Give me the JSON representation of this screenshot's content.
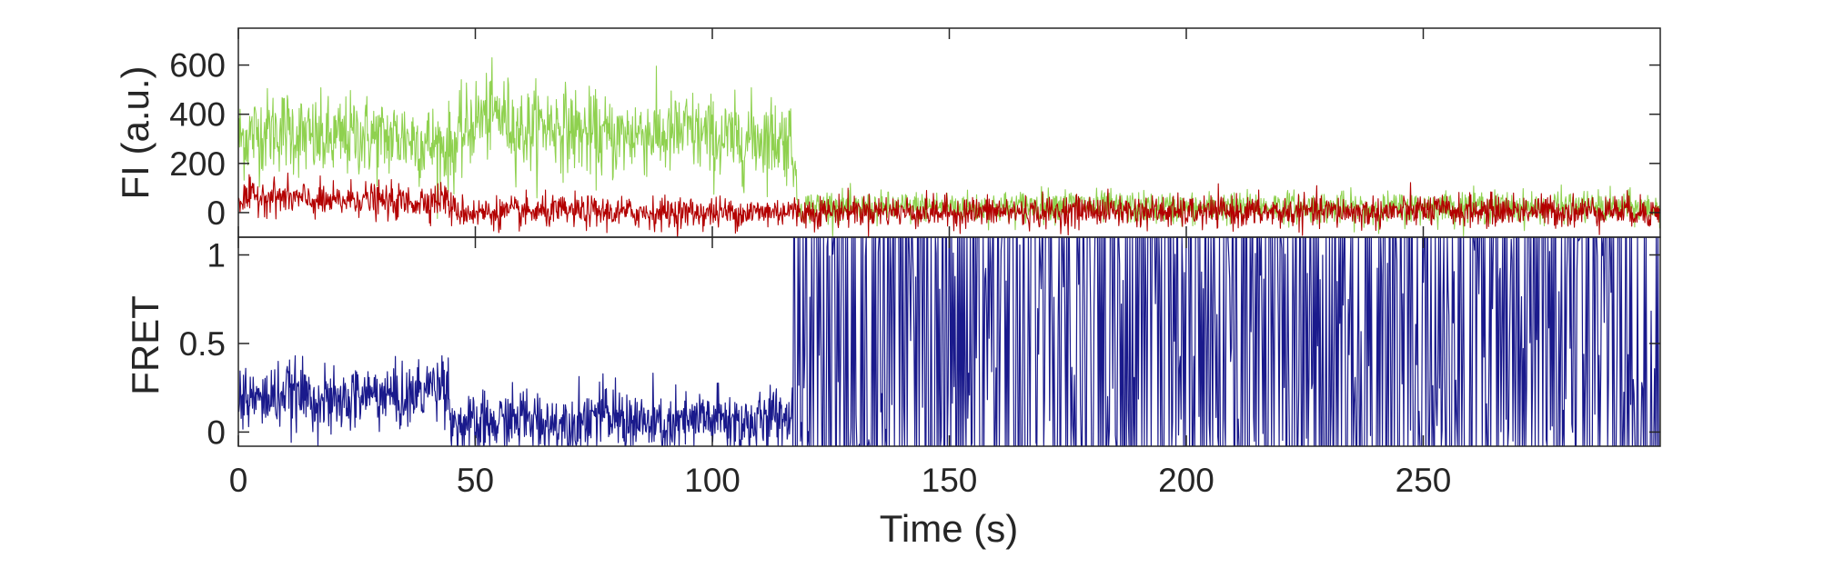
{
  "chart_data": [
    {
      "type": "line",
      "panel": "top",
      "xlabel": "",
      "ylabel": "FI (a.u.)",
      "xlim": [
        0,
        300
      ],
      "ylim": [
        -100,
        750
      ],
      "yticks": [
        0,
        200,
        400,
        600
      ],
      "ytick_labels": [
        "0",
        "200",
        "400",
        "600"
      ],
      "grid": false,
      "series": [
        {
          "color": "#8fd14f",
          "x": [
            0,
            5,
            10,
            15,
            20,
            25,
            30,
            35,
            40,
            45,
            50,
            55,
            60,
            65,
            70,
            75,
            80,
            85,
            90,
            95,
            100,
            105,
            110,
            115,
            117,
            118,
            125,
            130,
            140,
            150,
            160,
            170,
            175,
            180,
            190,
            200,
            210,
            220,
            230,
            240,
            250,
            260,
            270,
            280,
            290,
            300
          ],
          "y": [
            300,
            330,
            340,
            300,
            290,
            320,
            300,
            310,
            280,
            260,
            380,
            400,
            330,
            360,
            340,
            310,
            300,
            330,
            310,
            330,
            300,
            290,
            310,
            300,
            300,
            20,
            30,
            15,
            20,
            25,
            20,
            30,
            35,
            25,
            20,
            15,
            20,
            25,
            20,
            15,
            20,
            25,
            20,
            25,
            20,
            15
          ]
        },
        {
          "color": "#b30000",
          "x": [
            0,
            5,
            10,
            15,
            20,
            25,
            30,
            35,
            40,
            44,
            45,
            50,
            60,
            70,
            80,
            90,
            100,
            110,
            117,
            118,
            125,
            130,
            140,
            150,
            160,
            170,
            180,
            190,
            200,
            210,
            220,
            230,
            240,
            250,
            260,
            270,
            280,
            290,
            300
          ],
          "y": [
            50,
            70,
            60,
            50,
            40,
            60,
            45,
            40,
            50,
            60,
            10,
            0,
            0,
            5,
            0,
            0,
            0,
            0,
            10,
            0,
            5,
            10,
            5,
            0,
            5,
            0,
            10,
            5,
            0,
            5,
            0,
            5,
            0,
            10,
            5,
            10,
            5,
            10,
            0
          ]
        }
      ]
    },
    {
      "type": "line",
      "panel": "bottom",
      "xlabel": "Time (s)",
      "ylabel": "FRET",
      "xlim": [
        0,
        300
      ],
      "ylim": [
        -0.08,
        1.1
      ],
      "yticks": [
        0,
        0.5,
        1
      ],
      "ytick_labels": [
        "0",
        "0.5",
        "1"
      ],
      "xticks": [
        0,
        50,
        100,
        150,
        200,
        250
      ],
      "xtick_labels": [
        "0",
        "50",
        "100",
        "150",
        "200",
        "250"
      ],
      "grid": false,
      "series": [
        {
          "color": "#1a1a8c",
          "x": [
            0,
            5,
            10,
            15,
            20,
            25,
            30,
            35,
            40,
            44,
            45,
            50,
            55,
            60,
            65,
            70,
            75,
            80,
            85,
            90,
            95,
            100,
            105,
            110,
            115,
            117
          ],
          "y": [
            0.2,
            0.18,
            0.22,
            0.2,
            0.15,
            0.2,
            0.22,
            0.18,
            0.25,
            0.3,
            0.05,
            0.02,
            0.05,
            0.08,
            0.05,
            0.05,
            0.1,
            0.08,
            0.05,
            0.02,
            0.05,
            0.08,
            0.05,
            0.05,
            0.1,
            0.08
          ],
          "after_x": [
            117,
            300
          ],
          "after_style": "dense oscillation between -0.08 and 1.1"
        }
      ]
    }
  ]
}
